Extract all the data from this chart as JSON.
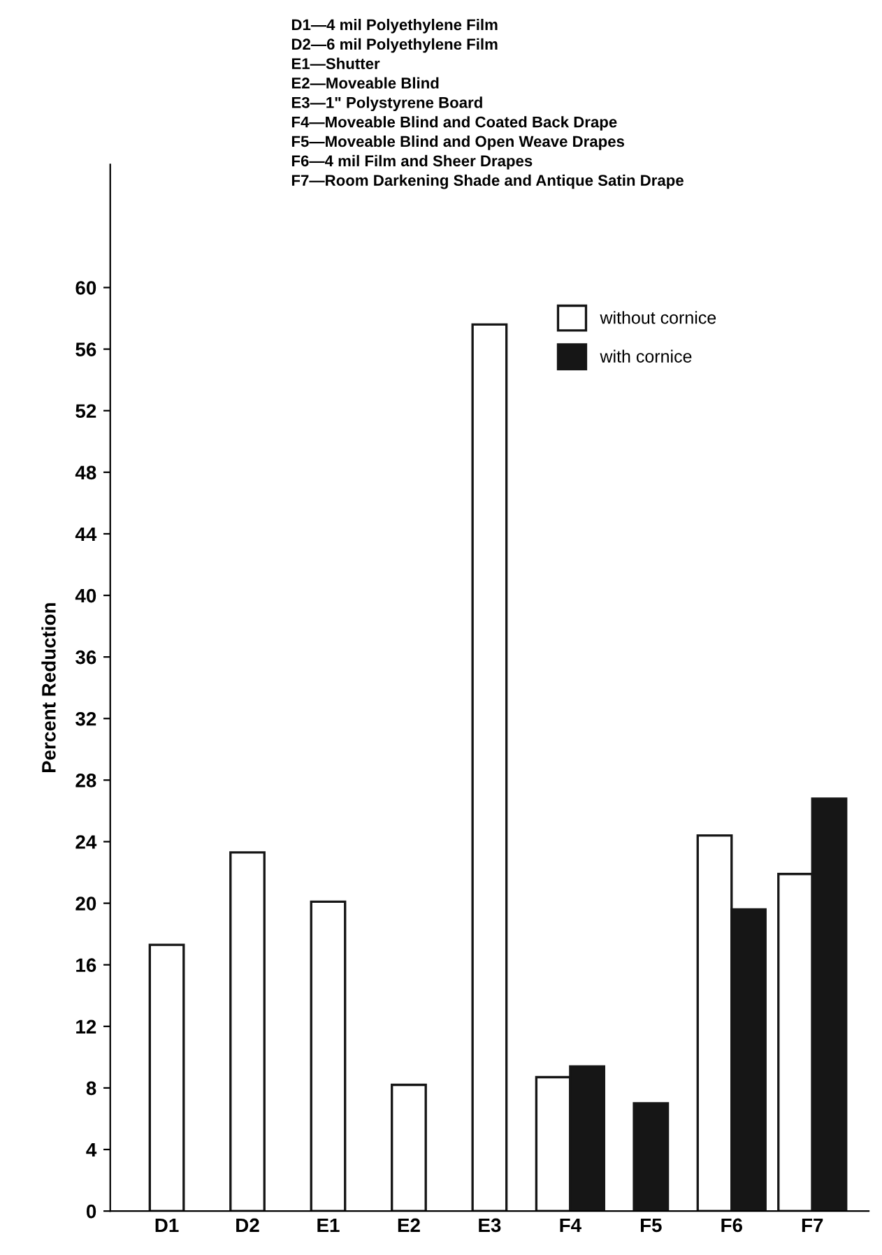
{
  "chart_data": {
    "type": "bar",
    "ylabel": "Percent Reduction",
    "annotations": [
      "D1—4 mil Polyethylene Film",
      "D2—6 mil Polyethylene Film",
      "E1—Shutter",
      "E2—Moveable Blind",
      "E3—1\" Polystyrene Board",
      "F4—Moveable Blind and Coated Back Drape",
      "F5—Moveable Blind and Open Weave Drapes",
      "F6—4 mil Film and Sheer Drapes",
      "F7—Room Darkening Shade and Antique Satin Drape"
    ],
    "categories": [
      "D1",
      "D2",
      "E1",
      "E2",
      "E3",
      "F4",
      "F5",
      "F6",
      "F7"
    ],
    "series": [
      {
        "name": "without cornice",
        "color": "#ffffff",
        "values": [
          17.3,
          23.3,
          20.1,
          8.2,
          57.6,
          8.7,
          null,
          24.4,
          21.9
        ]
      },
      {
        "name": "with cornice",
        "color": "#161616",
        "values": [
          null,
          null,
          null,
          null,
          null,
          9.4,
          7.0,
          19.6,
          26.8
        ]
      }
    ],
    "ylim": [
      0,
      68
    ],
    "yticks": [
      0,
      4,
      8,
      12,
      16,
      20,
      24,
      28,
      32,
      36,
      40,
      44,
      48,
      52,
      56,
      60
    ],
    "grid": false,
    "legend": "top right"
  }
}
